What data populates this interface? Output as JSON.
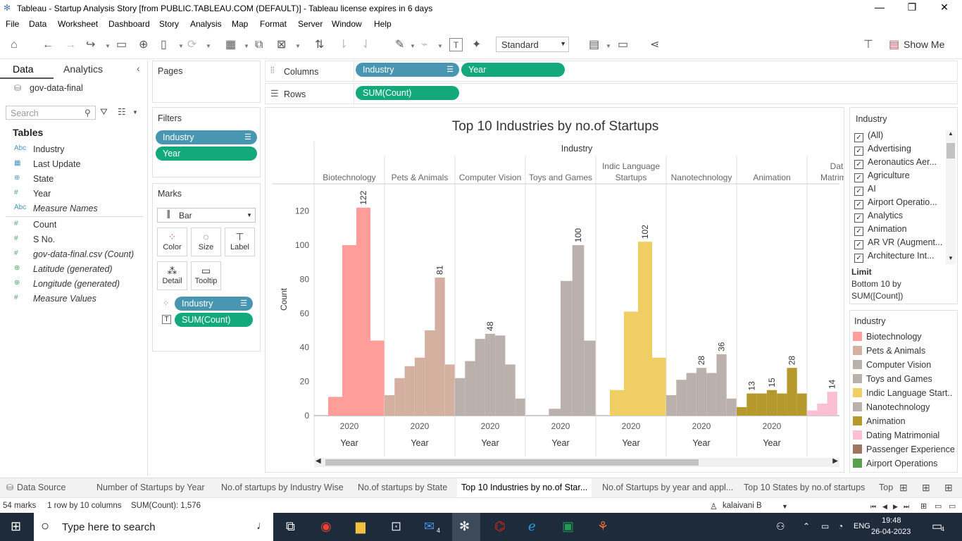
{
  "window": {
    "title": "Tableau - Startup Analysis Story [from PUBLIC.TABLEAU.COM (DEFAULT)] - Tableau license expires in 6 days"
  },
  "menu": [
    "File",
    "Data",
    "Worksheet",
    "Dashboard",
    "Story",
    "Analysis",
    "Map",
    "Format",
    "Server",
    "Window",
    "Help"
  ],
  "toolbar": {
    "view_mode": "Standard",
    "show_me": "Show Me"
  },
  "data_pane": {
    "tab_data": "Data",
    "tab_analytics": "Analytics",
    "datasource": "gov-data-final",
    "search_placeholder": "Search",
    "tables_heading": "Tables",
    "fields": [
      {
        "type": "Abc",
        "name": "Industry"
      },
      {
        "type": "date",
        "name": "Last Update"
      },
      {
        "type": "geo",
        "name": "State"
      },
      {
        "type": "#",
        "name": "Year"
      },
      {
        "type": "Abc",
        "name": "Measure Names"
      },
      {
        "type": "#",
        "name": "Count"
      },
      {
        "type": "#",
        "name": "S No."
      },
      {
        "type": "#",
        "name": "gov-data-final.csv (Count)"
      },
      {
        "type": "geo",
        "name": "Latitude (generated)"
      },
      {
        "type": "geo",
        "name": "Longitude (generated)"
      },
      {
        "type": "#",
        "name": "Measure Values"
      }
    ]
  },
  "cards": {
    "pages": "Pages",
    "filters": "Filters",
    "filter_pills": [
      "Industry",
      "Year"
    ],
    "marks": "Marks",
    "mark_type": "Bar",
    "mark_buttons": [
      "Color",
      "Size",
      "Label",
      "Detail",
      "Tooltip"
    ],
    "mark_pills": [
      "Industry",
      "SUM(Count)"
    ]
  },
  "shelves": {
    "columns_label": "Columns",
    "rows_label": "Rows",
    "columns": [
      "Industry",
      "Year"
    ],
    "rows": [
      "SUM(Count)"
    ]
  },
  "chart_data": {
    "type": "bar",
    "title": "Top 10 Industries by no.of Startups",
    "column_header": "Industry",
    "ylabel": "Count",
    "ylim": [
      0,
      130
    ],
    "yticks": [
      0,
      20,
      40,
      60,
      80,
      100,
      120
    ],
    "x_subheader": "Year",
    "x_tick": "2020",
    "panels": [
      {
        "name": "Biotechnology",
        "values": [
          0,
          11,
          100,
          122,
          44
        ],
        "label": "122",
        "color": "#ff9d9a"
      },
      {
        "name": "Pets & Animals",
        "values": [
          12,
          22,
          29,
          34,
          50,
          81,
          30
        ],
        "label": "81",
        "color": "#d4b0a0"
      },
      {
        "name": "Computer Vision",
        "values": [
          22,
          32,
          45,
          48,
          47,
          30,
          10
        ],
        "label": "48",
        "color": "#bab0ac"
      },
      {
        "name": "Toys and Games",
        "values": [
          0,
          0,
          4,
          79,
          100,
          44
        ],
        "label": "100",
        "color": "#bab0ac"
      },
      {
        "name": "Indic Language Startups",
        "values": [
          0,
          15,
          61,
          102,
          34
        ],
        "label": "102",
        "color": "#f1ce63"
      },
      {
        "name": "Nanotechnology",
        "values": [
          12,
          21,
          25,
          28,
          25,
          36,
          10
        ],
        "label": "28",
        "label2": "36",
        "color": "#bab0ac"
      },
      {
        "name": "Animation",
        "values": [
          5,
          13,
          13,
          15,
          13,
          28,
          13
        ],
        "label": "13",
        "label2": "15",
        "label3": "28",
        "color": "#b6992d"
      },
      {
        "name": "Dating Matrimonial",
        "values": [
          3,
          7,
          14
        ],
        "label": "14",
        "color": "#fabfd2"
      }
    ]
  },
  "filter_card": {
    "title": "Industry",
    "items": [
      "(All)",
      "Advertising",
      "Aeronautics Aer...",
      "Agriculture",
      "AI",
      "Airport Operatio...",
      "Analytics",
      "Animation",
      "AR VR (Augment...",
      "Architecture Int..."
    ],
    "limit_label": "Limit",
    "limit_value": "Bottom 10 by",
    "limit_value2": "SUM([Count])"
  },
  "legend": {
    "title": "Industry",
    "items": [
      {
        "name": "Biotechnology",
        "color": "#ff9d9a"
      },
      {
        "name": "Pets & Animals",
        "color": "#d4b0a0"
      },
      {
        "name": "Computer Vision",
        "color": "#bab0ac"
      },
      {
        "name": "Toys and Games",
        "color": "#bab0ac"
      },
      {
        "name": "Indic Language Start..",
        "color": "#f1ce63"
      },
      {
        "name": "Nanotechnology",
        "color": "#bab0ac"
      },
      {
        "name": "Animation",
        "color": "#b6992d"
      },
      {
        "name": "Dating Matrimonial",
        "color": "#fabfd2"
      },
      {
        "name": "Passenger Experience",
        "color": "#9d7660"
      },
      {
        "name": "Airport Operations",
        "color": "#59a14f"
      }
    ]
  },
  "sheet_tabs": {
    "datasource": "Data Source",
    "tabs": [
      "Number of Startups by Year",
      "No.of startups by Industry Wise",
      "No.of startups by State",
      "Top 10 Industries by no.of Star...",
      "No.of Startups by year and appl...",
      "Top 10 States by no.of startups",
      "Top"
    ],
    "active": 3
  },
  "status": {
    "marks": "54 marks",
    "rows": "1 row by 10 columns",
    "sum": "SUM(Count): 1,576",
    "user": "kalaivani B"
  },
  "taskbar": {
    "search": "Type here to search",
    "time": "19:48",
    "date": "26-04-2023",
    "lang": "ENG",
    "notif": "4"
  }
}
